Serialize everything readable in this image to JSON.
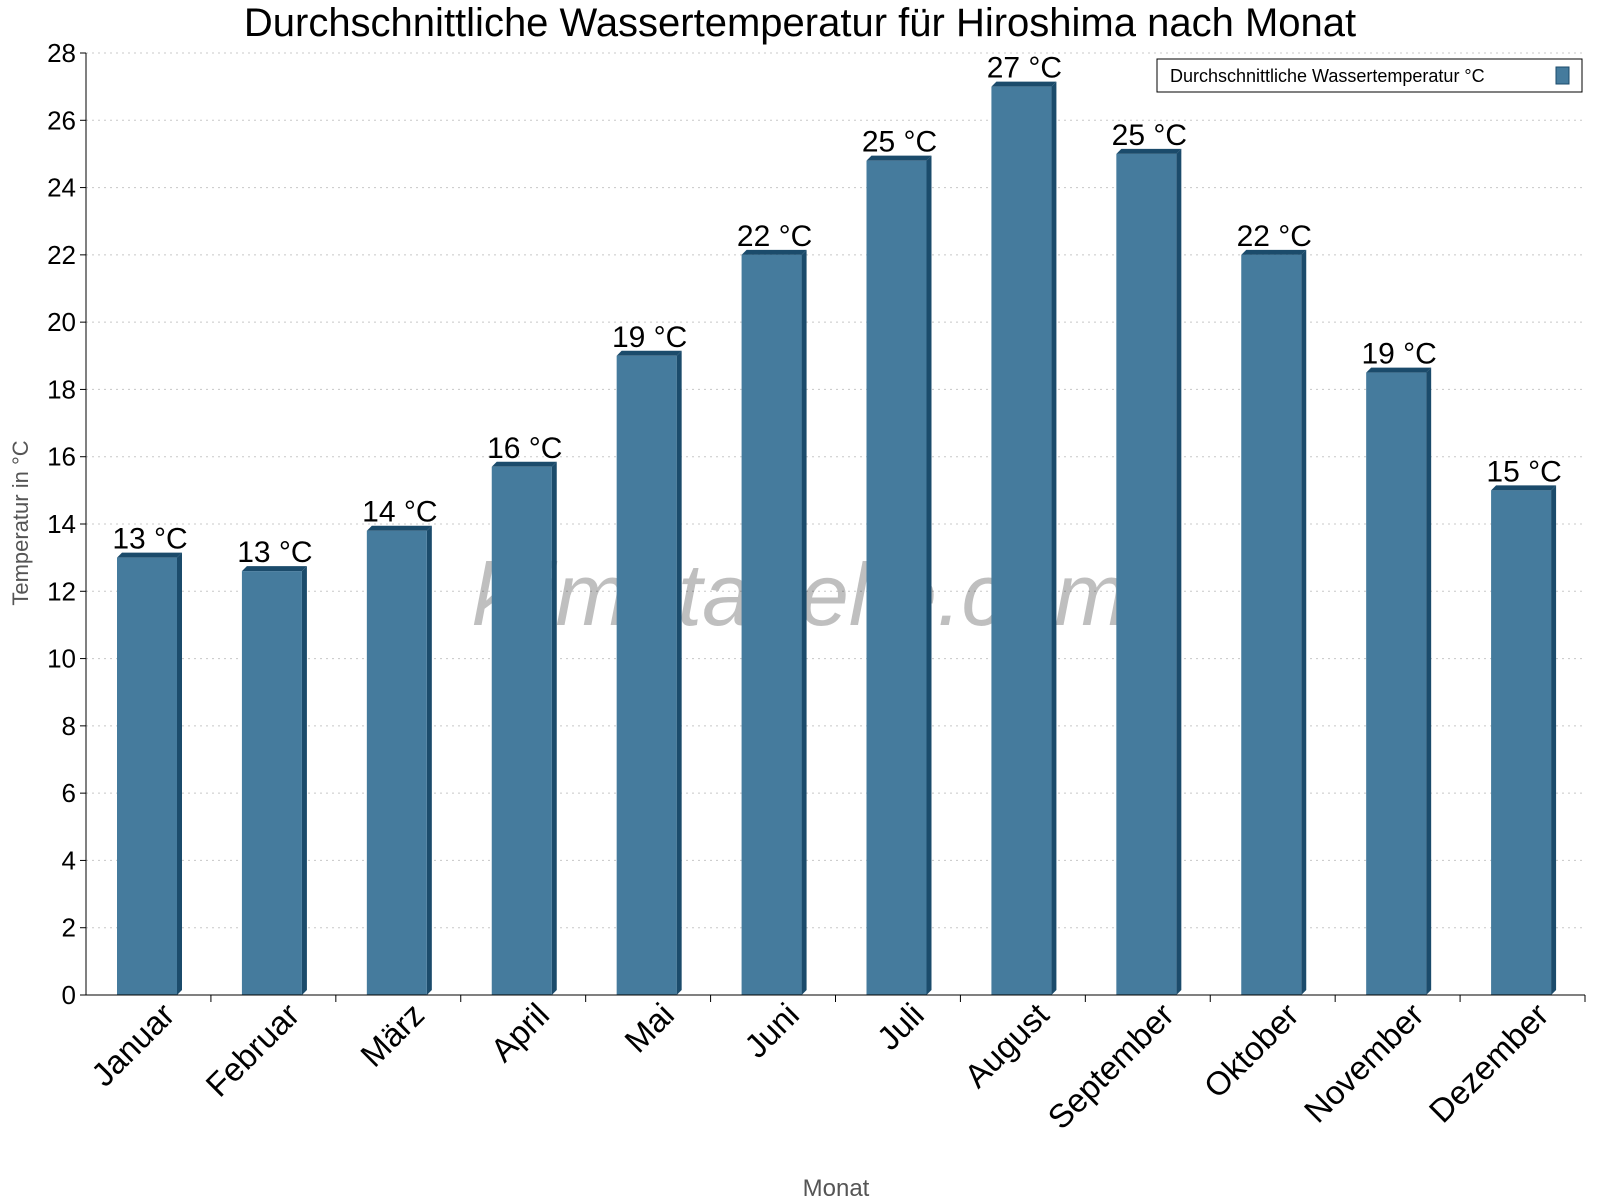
{
  "chart_data": {
    "type": "bar",
    "title": "Durchschnittliche Wassertemperatur für Hiroshima nach Monat",
    "xlabel": "Monat",
    "ylabel": "Temperatur in °C",
    "ylim": [
      0,
      28
    ],
    "yticks": [
      0,
      2,
      4,
      6,
      8,
      10,
      12,
      14,
      16,
      18,
      20,
      22,
      24,
      26,
      28
    ],
    "grid": true,
    "legend_position": "top-right",
    "categories": [
      "Januar",
      "Februar",
      "März",
      "April",
      "Mai",
      "Juni",
      "Juli",
      "August",
      "September",
      "Oktober",
      "November",
      "Dezember"
    ],
    "series": [
      {
        "name": "Durchschnittliche Wassertemperatur °C",
        "values": [
          13.0,
          12.6,
          13.8,
          15.7,
          19.0,
          22.0,
          24.8,
          27.0,
          25.0,
          22.0,
          18.5,
          15.0
        ],
        "labels": [
          "13 °C",
          "13 °C",
          "14 °C",
          "16 °C",
          "19 °C",
          "22 °C",
          "25 °C",
          "27 °C",
          "25 °C",
          "22 °C",
          "19 °C",
          "15 °C"
        ],
        "color": "#457b9d",
        "side_color": "#1b4b6b"
      }
    ],
    "watermark": "klimatabelle.com"
  }
}
